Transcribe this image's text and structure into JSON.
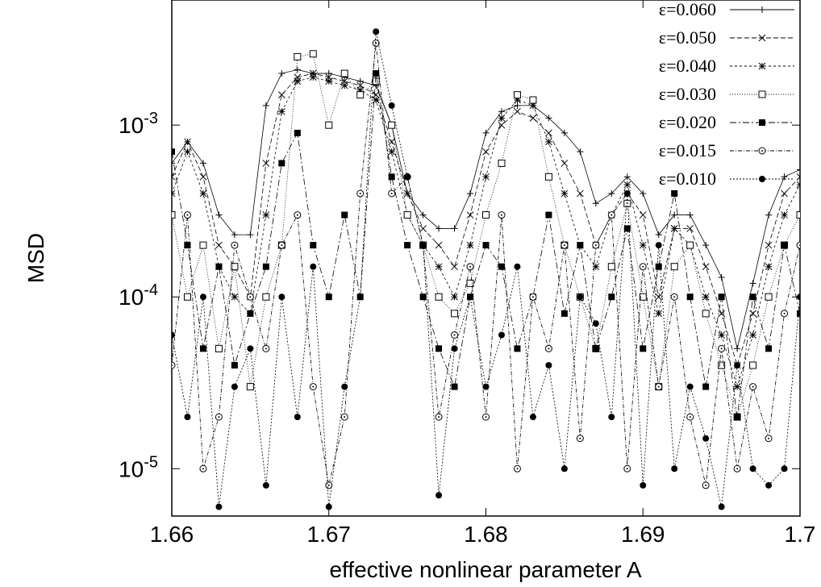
{
  "chart_data": {
    "type": "line",
    "x_label": "effective nonlinear parameter A",
    "y_label": "MSD",
    "log_y": true,
    "legend": "top-right",
    "xlim": [
      1.66,
      1.7
    ],
    "ylim": [
      5.3e-06,
      0.00535
    ],
    "xticks": [
      1.66,
      1.67,
      1.68,
      1.69,
      1.7
    ],
    "yticks": [
      {
        "value": 1e-05,
        "label": "10-5"
      },
      {
        "value": 0.0001,
        "label": "10-4"
      },
      {
        "value": 0.001,
        "label": "10-3"
      }
    ],
    "x": [
      1.66,
      1.661,
      1.662,
      1.663,
      1.664,
      1.665,
      1.666,
      1.667,
      1.668,
      1.669,
      1.67,
      1.671,
      1.672,
      1.673,
      1.674,
      1.675,
      1.676,
      1.677,
      1.678,
      1.679,
      1.68,
      1.681,
      1.682,
      1.683,
      1.684,
      1.685,
      1.686,
      1.687,
      1.688,
      1.689,
      1.69,
      1.691,
      1.692,
      1.693,
      1.694,
      1.695,
      1.696,
      1.697,
      1.698,
      1.699,
      1.7
    ],
    "series": [
      {
        "name": "ε=0.060",
        "color": "#000000",
        "marker": "plus",
        "dash": "none",
        "values": [
          0.0006,
          0.0008,
          0.0006,
          0.0003,
          0.00023,
          0.00023,
          0.0013,
          0.002,
          0.0021,
          0.002,
          0.002,
          0.0019,
          0.0018,
          0.0017,
          0.001,
          0.0004,
          0.0003,
          0.00025,
          0.00025,
          0.0004,
          0.0009,
          0.0012,
          0.0013,
          0.0013,
          0.0011,
          0.0009,
          0.0007,
          0.00035,
          0.0004,
          0.0005,
          0.0004,
          0.00023,
          0.0003,
          0.0003,
          0.0002,
          0.00013,
          5e-05,
          0.00012,
          0.0003,
          0.0005,
          0.00055
        ]
      },
      {
        "name": "ε=0.050",
        "color": "#000000",
        "marker": "cross",
        "dash": "6,3",
        "values": [
          0.0005,
          0.0008,
          0.0005,
          0.0002,
          0.00015,
          0.0001,
          0.0006,
          0.0015,
          0.0019,
          0.002,
          0.0019,
          0.0018,
          0.0017,
          0.0015,
          0.0008,
          0.0004,
          0.00025,
          0.0002,
          0.00015,
          0.0003,
          0.0007,
          0.001,
          0.0012,
          0.0011,
          0.0009,
          0.0006,
          0.0004,
          0.0002,
          0.0003,
          0.0004,
          0.0003,
          0.0001,
          0.00025,
          0.00025,
          0.00015,
          8e-05,
          4e-05,
          8e-05,
          0.0002,
          0.0004,
          0.0005
        ]
      },
      {
        "name": "ε=0.040",
        "color": "#000000",
        "marker": "star",
        "dash": "3,3",
        "values": [
          0.0004,
          0.0007,
          0.0004,
          0.00015,
          0.0001,
          8e-05,
          0.0003,
          0.0012,
          0.0018,
          0.0019,
          0.0018,
          0.0017,
          0.0016,
          0.0014,
          0.0007,
          0.0003,
          0.0002,
          0.00015,
          0.0001,
          0.0002,
          0.0005,
          0.0011,
          0.0014,
          0.0013,
          0.0008,
          0.0004,
          0.0002,
          0.00015,
          0.0003,
          0.00045,
          0.0002,
          8e-05,
          0.00025,
          0.0002,
          0.0001,
          6e-05,
          3e-05,
          6e-05,
          0.00015,
          0.0003,
          0.00045
        ]
      },
      {
        "name": "ε=0.030",
        "color": "#000000",
        "marker": "square-open",
        "dash": "1,2",
        "values": [
          0.0003,
          0.0001,
          0.0002,
          5e-05,
          0.00015,
          3e-05,
          0.0001,
          0.0002,
          0.0025,
          0.0026,
          0.001,
          0.002,
          0.0015,
          0.0018,
          0.001,
          0.0003,
          0.0002,
          0.0001,
          8e-05,
          0.00012,
          0.0003,
          0.0006,
          0.0015,
          0.0014,
          0.0005,
          0.0002,
          0.0001,
          5e-05,
          0.00015,
          0.00035,
          0.0001,
          3e-05,
          0.00015,
          0.0002,
          8e-05,
          4e-05,
          2e-05,
          4e-05,
          0.0001,
          0.0002,
          0.0003
        ]
      },
      {
        "name": "ε=0.020",
        "color": "#000000",
        "marker": "square",
        "dash": "8,3,2,3",
        "values": [
          0.0007,
          0.0002,
          5e-05,
          0.00015,
          4e-05,
          8e-05,
          0.00015,
          0.0006,
          0.0009,
          0.0002,
          0.0001,
          0.0003,
          0.0001,
          0.002,
          0.0005,
          0.0002,
          0.0001,
          5e-05,
          3e-05,
          0.0001,
          0.0002,
          0.00015,
          5e-05,
          0.0001,
          0.0003,
          8e-05,
          0.0002,
          5e-05,
          0.0001,
          0.00025,
          5e-05,
          0.00015,
          0.0004,
          0.0001,
          3e-05,
          0.0001,
          2e-05,
          0.0001,
          5e-05,
          0.0002,
          8e-05
        ]
      },
      {
        "name": "ε=0.015",
        "color": "#000000",
        "marker": "circle-open",
        "dash": "5,2,1,2",
        "values": [
          4e-05,
          0.0003,
          1e-05,
          2e-05,
          0.0002,
          0.0001,
          5e-05,
          0.0002,
          0.0003,
          3e-05,
          8e-06,
          2e-05,
          0.0004,
          0.003,
          0.0004,
          0.0005,
          0.0002,
          2e-05,
          6e-05,
          0.00015,
          2e-05,
          0.0003,
          1e-05,
          0.0001,
          5e-05,
          0.0002,
          1.5e-05,
          0.0002,
          0.0003,
          1e-05,
          0.00015,
          3e-05,
          0.0001,
          2e-05,
          8e-06,
          5e-05,
          1e-05,
          3e-05,
          1.5e-05,
          8e-05,
          0.0002
        ]
      },
      {
        "name": "ε=0.010",
        "color": "#000000",
        "marker": "circle",
        "dash": "2,2",
        "values": [
          6e-05,
          2e-05,
          0.0001,
          6e-06,
          3e-05,
          5e-05,
          8e-06,
          0.0001,
          2e-05,
          0.00015,
          6e-06,
          3e-05,
          0.0001,
          0.0035,
          0.0013,
          0.0005,
          0.0002,
          7e-06,
          5e-05,
          0.0001,
          3e-05,
          6e-05,
          0.00015,
          2e-05,
          4e-05,
          1e-05,
          0.0001,
          7e-05,
          2e-05,
          0.0004,
          8e-06,
          0.0002,
          1e-05,
          3e-05,
          1.5e-05,
          6e-06,
          4e-05,
          1e-05,
          8e-06,
          1e-05,
          0.0001
        ]
      }
    ]
  }
}
